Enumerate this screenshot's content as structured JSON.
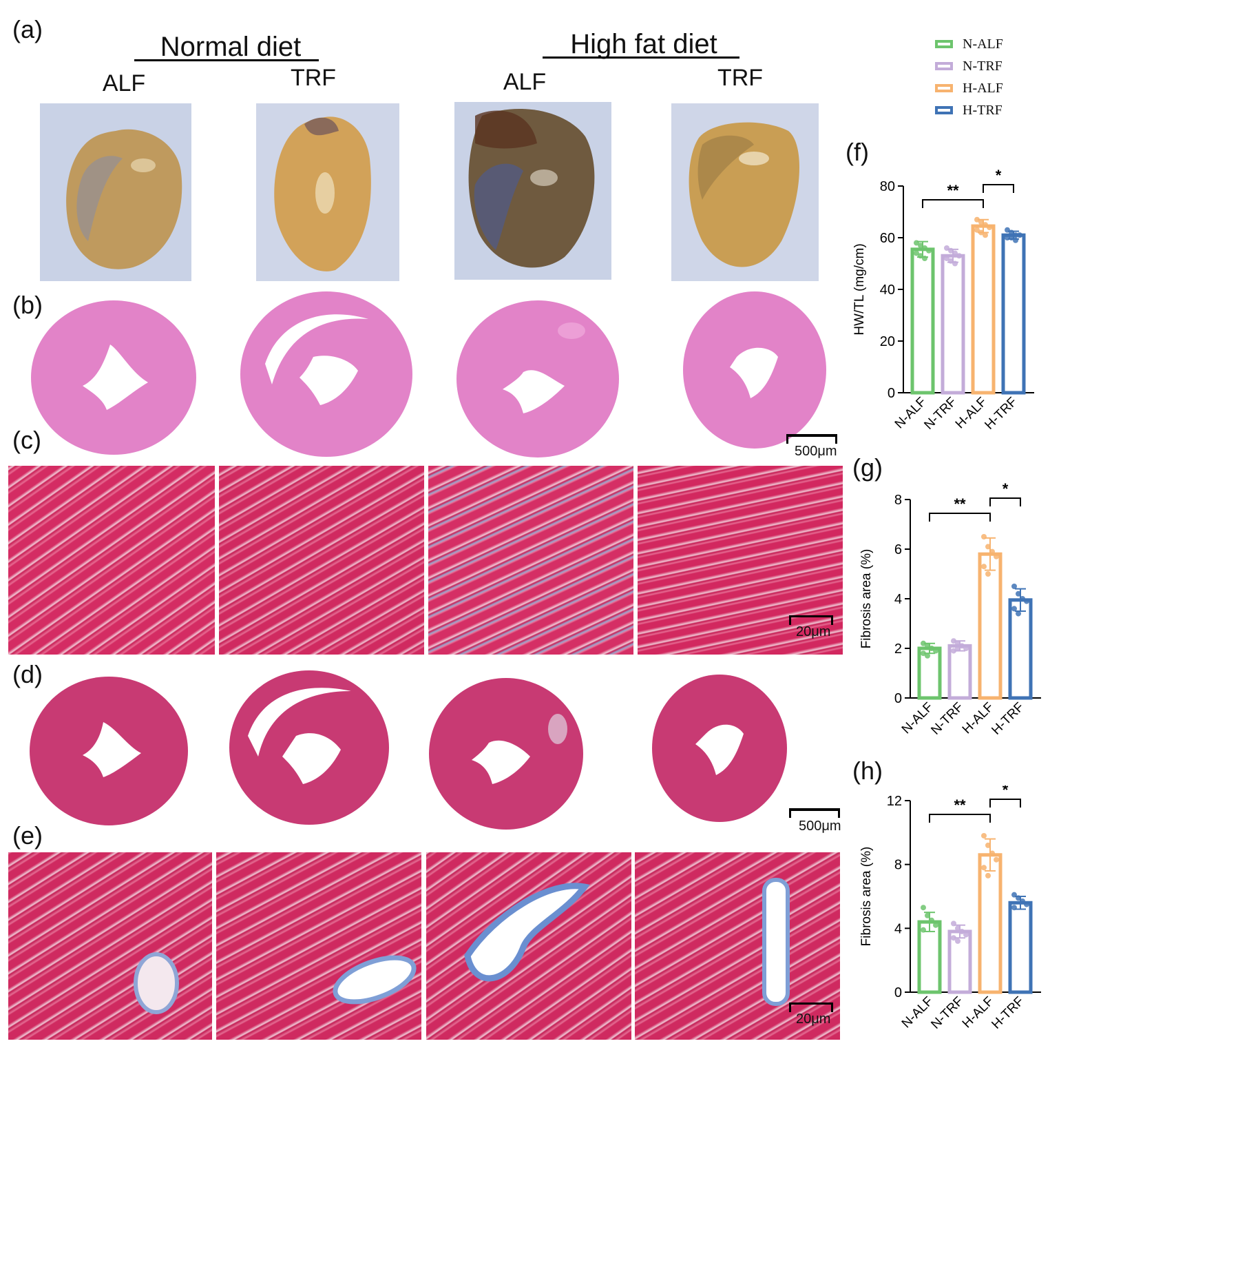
{
  "panels": {
    "a": "(a)",
    "b": "(b)",
    "c": "(c)",
    "d": "(d)",
    "e": "(e)",
    "f": "(f)",
    "g": "(g)",
    "h": "(h)"
  },
  "diets": {
    "normal": "Normal diet",
    "high_fat": "High fat diet"
  },
  "groups": [
    "ALF",
    "TRF",
    "ALF",
    "TRF"
  ],
  "scale_bars": {
    "b": "500μm",
    "c": "20μm",
    "d": "500μm",
    "e": "20μm"
  },
  "legend": [
    {
      "label": "N-ALF",
      "color": "#6dc46d"
    },
    {
      "label": "N-TRF",
      "color": "#c3acd9"
    },
    {
      "label": "H-ALF",
      "color": "#f7b36f"
    },
    {
      "label": "H-TRF",
      "color": "#3f73b5"
    }
  ],
  "chart_data": [
    {
      "panel": "f",
      "type": "bar",
      "categories": [
        "N-ALF",
        "N-TRF",
        "H-ALF",
        "H-TRF"
      ],
      "values": [
        55.5,
        53,
        64.5,
        61
      ],
      "errors": [
        3,
        2.5,
        2.5,
        1.5
      ],
      "points": [
        [
          58,
          57,
          56,
          55,
          54,
          53,
          52
        ],
        [
          56,
          55,
          54,
          53,
          52,
          51,
          50
        ],
        [
          67,
          66,
          65,
          64,
          63,
          62,
          61
        ],
        [
          63,
          62,
          61,
          61,
          60,
          60,
          59
        ]
      ],
      "ylabel": "HW/TL (mg/cm)",
      "ylim": [
        0,
        80
      ],
      "yticks": [
        0,
        20,
        40,
        60,
        80
      ],
      "significance": [
        {
          "from": 0,
          "to": 2,
          "label": "**"
        },
        {
          "from": 2,
          "to": 3,
          "label": "*"
        }
      ]
    },
    {
      "panel": "g",
      "type": "bar",
      "categories": [
        "N-ALF",
        "N-TRF",
        "H-ALF",
        "H-TRF"
      ],
      "values": [
        2.0,
        2.1,
        5.8,
        3.95
      ],
      "errors": [
        0.2,
        0.2,
        0.65,
        0.45
      ],
      "points": [
        [
          2.2,
          2.1,
          2.0,
          1.9,
          1.8,
          1.7
        ],
        [
          2.3,
          2.2,
          2.1,
          2.0,
          1.9,
          2.0
        ],
        [
          6.5,
          6.1,
          5.9,
          5.7,
          5.3,
          5.0
        ],
        [
          4.5,
          4.2,
          4.0,
          3.9,
          3.6,
          3.4
        ]
      ],
      "ylabel": "Fibrosis area (%)",
      "ylim": [
        0,
        8
      ],
      "yticks": [
        0,
        2,
        4,
        6,
        8
      ],
      "significance": [
        {
          "from": 0,
          "to": 2,
          "label": "**"
        },
        {
          "from": 2,
          "to": 3,
          "label": "*"
        }
      ]
    },
    {
      "panel": "h",
      "type": "bar",
      "categories": [
        "N-ALF",
        "N-TRF",
        "H-ALF",
        "H-TRF"
      ],
      "values": [
        4.4,
        3.8,
        8.6,
        5.6
      ],
      "errors": [
        0.6,
        0.4,
        1.0,
        0.4
      ],
      "points": [
        [
          5.3,
          4.8,
          4.5,
          4.2,
          3.9
        ],
        [
          4.3,
          4.0,
          3.8,
          3.6,
          3.4,
          3.2
        ],
        [
          9.8,
          9.2,
          8.7,
          8.3,
          7.8,
          7.3
        ],
        [
          6.1,
          5.9,
          5.7,
          5.5,
          5.3
        ]
      ],
      "ylabel": "Fibrosis area (%)",
      "ylim": [
        0,
        12
      ],
      "yticks": [
        0,
        4,
        8,
        12
      ],
      "significance": [
        {
          "from": 0,
          "to": 2,
          "label": "**"
        },
        {
          "from": 2,
          "to": 3,
          "label": "*"
        }
      ]
    }
  ]
}
